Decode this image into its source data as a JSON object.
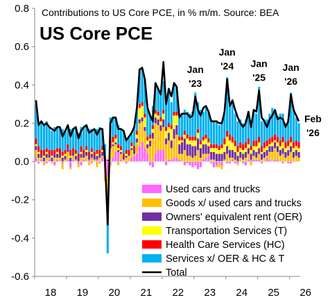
{
  "chart_data": {
    "type": "bar",
    "subtitle": "Contributions to US Core PCE, in % m/m. Source: BEA",
    "title": "US Core PCE",
    "ylim": [
      -0.6,
      0.8
    ],
    "yticks": [
      "0.8",
      "0.6",
      "0.4",
      "0.2",
      "0.0",
      "-0.2",
      "-0.4",
      "-0.6"
    ],
    "ytick_values": [
      0.8,
      0.6,
      0.4,
      0.2,
      0.0,
      -0.2,
      -0.4,
      -0.6
    ],
    "xticks": [
      "18",
      "19",
      "20",
      "21",
      "22",
      "23",
      "24",
      "25",
      "26"
    ],
    "x_start": "2018-01",
    "x_end": "2026-02",
    "grid": false,
    "legend_position": "bottom-right",
    "annotations": [
      {
        "line1": "Jan",
        "line2": "'23",
        "month": "2023-01"
      },
      {
        "line1": "Jan",
        "line2": "'24",
        "month": "2024-01"
      },
      {
        "line1": "Jan",
        "line2": "'25",
        "month": "2025-01"
      },
      {
        "line1": "Jan",
        "line2": "'26",
        "month": "2026-01"
      },
      {
        "line1": "Feb",
        "line2": "'26",
        "month": "2026-02"
      }
    ],
    "series": [
      {
        "name": "Used cars and trucks",
        "color": "#ff66ff",
        "values": [
          0.02,
          -0.01,
          0.01,
          0,
          -0.01,
          0.01,
          0,
          -0.02,
          0.01,
          0,
          -0.01,
          0,
          0.01,
          -0.03,
          0.01,
          0,
          -0.01,
          -0.02,
          0.01,
          0,
          0.01,
          -0.01,
          0,
          0.01,
          -0.01,
          0.02,
          -0.03,
          -0.08,
          -0.02,
          0.02,
          0.05,
          0.05,
          0.01,
          0,
          -0.01,
          0,
          0.02,
          0.03,
          0.04,
          0.08,
          0.1,
          0.07,
          0.04,
          -0.02,
          -0.03,
          0.04,
          0.06,
          0.06,
          0.06,
          -0.02,
          0.01,
          0.01,
          0.02,
          0.02,
          0.01,
          0,
          -0.02,
          -0.01,
          -0.02,
          -0.03,
          -0.02,
          -0.04,
          -0.03,
          0.01,
          0.02,
          0.03,
          -0.01,
          -0.03,
          -0.02,
          -0.01,
          -0.02,
          0,
          -0.01,
          -0.01,
          0.01,
          -0.01,
          -0.01,
          0,
          -0.01,
          -0.02,
          0.01,
          0.01,
          0.01,
          0.01,
          0.01,
          -0.01,
          0,
          0.02,
          0.01,
          0,
          0.01,
          0.01,
          0,
          -0.01,
          0,
          -0.01,
          -0.01,
          0
        ]
      },
      {
        "name": "Goods x/ used cars and trucks",
        "color": "#ffc000",
        "values": [
          0.04,
          0.02,
          0.01,
          -0.02,
          0.02,
          0.01,
          -0.01,
          0.02,
          0.01,
          0.02,
          -0.03,
          0.01,
          0.04,
          -0.01,
          0.02,
          0.01,
          -0.02,
          0.02,
          0.01,
          0.03,
          -0.02,
          0.02,
          0.01,
          -0.03,
          0.02,
          0.01,
          -0.07,
          -0.15,
          0.07,
          0.06,
          0.04,
          -0.02,
          0.03,
          0.01,
          0.02,
          0.03,
          0.04,
          0.01,
          0.06,
          0.12,
          0.11,
          0.09,
          0.03,
          0.08,
          0.12,
          0.16,
          0.13,
          0.1,
          0.12,
          0.09,
          0.1,
          0.06,
          0.1,
          0.12,
          0.03,
          0.04,
          0.06,
          0.03,
          0.03,
          0.02,
          0.03,
          0.06,
          0.02,
          0.03,
          0.02,
          0.01,
          0.01,
          0.01,
          -0.01,
          -0.02,
          -0.02,
          0.01,
          0.04,
          0.02,
          0.01,
          0.01,
          -0.01,
          0.02,
          0.01,
          0.02,
          0.03,
          -0.02,
          0.02,
          0.01,
          0.03,
          0.01,
          0.02,
          0.01,
          0.04,
          0.05,
          0.06,
          0.04,
          0.03,
          0.04,
          0.02,
          0.03,
          0.05,
          0.02,
          0.03,
          0.02
        ]
      },
      {
        "name": "Owners' equivalent rent (OER)",
        "color": "#7030a0",
        "values": [
          0.02,
          0.02,
          0.02,
          0.02,
          0.02,
          0.02,
          0.02,
          0.02,
          0.02,
          0.02,
          0.02,
          0.02,
          0.02,
          0.02,
          0.02,
          0.02,
          0.02,
          0.02,
          0.02,
          0.02,
          0.02,
          0.02,
          0.02,
          0.02,
          0.02,
          0.02,
          0.02,
          0.01,
          0.01,
          0.01,
          0.01,
          0.01,
          0.01,
          0.01,
          0.01,
          0.01,
          0.01,
          0.02,
          0.02,
          0.02,
          0.02,
          0.02,
          0.02,
          0.03,
          0.03,
          0.03,
          0.03,
          0.03,
          0.04,
          0.03,
          0.04,
          0.04,
          0.05,
          0.05,
          0.05,
          0.06,
          0.06,
          0.06,
          0.06,
          0.06,
          0.05,
          0.06,
          0.05,
          0.05,
          0.05,
          0.04,
          0.04,
          0.04,
          0.04,
          0.04,
          0.04,
          0.04,
          0.04,
          0.04,
          0.04,
          0.04,
          0.03,
          0.03,
          0.03,
          0.03,
          0.03,
          0.03,
          0.03,
          0.03,
          0.03,
          0.03,
          0.03,
          0.03,
          0.03,
          0.03,
          0.03,
          0.03,
          0.03,
          0.03,
          0.03,
          0.03,
          0.03,
          0.03,
          0.03,
          0.03
        ]
      },
      {
        "name": "Transportation Services (T)",
        "color": "#ffff00",
        "values": [
          0.01,
          0.01,
          0,
          0.01,
          0.01,
          0,
          0.01,
          0,
          0.01,
          0,
          0.01,
          0.01,
          0,
          0.01,
          0,
          0.01,
          0,
          0.01,
          0,
          0.01,
          0,
          0.01,
          0,
          0.01,
          0,
          0.01,
          0,
          -0.05,
          -0.01,
          0.01,
          0.02,
          0.01,
          0.01,
          0,
          0.01,
          0,
          0.01,
          0,
          0.02,
          0.06,
          0.06,
          0.05,
          0.02,
          0.01,
          0.02,
          0.02,
          0.02,
          0.02,
          0.03,
          0.04,
          0.03,
          0.06,
          0.07,
          0.05,
          0.02,
          0.01,
          0.02,
          0.03,
          0.02,
          0.03,
          0.03,
          0.03,
          0.02,
          0.02,
          0.03,
          0.02,
          0.02,
          0.02,
          0.03,
          0.02,
          0.03,
          0.04,
          0.05,
          0.05,
          0.04,
          0.03,
          0.02,
          0.02,
          0.02,
          0.02,
          0.02,
          0.02,
          0.02,
          0.03,
          0.03,
          0.01,
          0.02,
          0.02,
          0.01,
          0.02,
          0.01,
          0.02,
          0.02,
          0.03,
          0.02,
          0.02,
          0.02,
          0.02,
          0.02,
          0.02
        ]
      },
      {
        "name": "Health Care Services (HC)",
        "color": "#ff0000",
        "values": [
          0.03,
          0.03,
          0.02,
          0.03,
          0.02,
          0.02,
          0.03,
          0.02,
          0.02,
          0.03,
          0.02,
          0.02,
          0.02,
          0.03,
          0.02,
          0.02,
          0.02,
          0.03,
          0.02,
          0.02,
          0.02,
          0.02,
          0.02,
          0.02,
          0.02,
          0.02,
          0.01,
          -0.04,
          0.03,
          0.03,
          0.02,
          0.02,
          0.02,
          0.02,
          0.02,
          0.02,
          0.02,
          0.02,
          0.02,
          0.02,
          0.02,
          0.02,
          0.02,
          0.02,
          0.02,
          0.02,
          0.02,
          0.02,
          0.02,
          0.02,
          0.02,
          0.02,
          0.02,
          0.02,
          0.02,
          0.02,
          0.02,
          0.02,
          0.02,
          0.02,
          0.02,
          0.02,
          0.02,
          0.02,
          0.02,
          0.02,
          0.02,
          0.02,
          0.02,
          0.02,
          0.02,
          0.03,
          0.03,
          0.03,
          0.03,
          0.03,
          0.03,
          0.03,
          0.03,
          0.03,
          0.03,
          0.02,
          0.03,
          0.03,
          0.03,
          0.03,
          0.03,
          0.03,
          0.03,
          0.03,
          0.03,
          0.03,
          0.03,
          0.03,
          0.03,
          0.03,
          0.03,
          0.03,
          0.03,
          0.03
        ]
      },
      {
        "name": "Services x/ OER & HC & T",
        "color": "#00b0f0",
        "values": [
          0.18,
          0.12,
          0.15,
          0.13,
          0.14,
          0.12,
          0.1,
          0.12,
          0.11,
          0.11,
          0.12,
          0.1,
          0.1,
          0.11,
          0.1,
          0.12,
          0.11,
          0.1,
          0.12,
          0.11,
          0.12,
          0.1,
          0.11,
          0.11,
          0.12,
          0.09,
          0.06,
          -0.16,
          0.12,
          0.1,
          0.09,
          0.1,
          0.09,
          0.12,
          0.06,
          0.07,
          0.05,
          0.1,
          0.12,
          0.18,
          0.18,
          0.18,
          0.15,
          0.1,
          0.1,
          0.14,
          0.12,
          0.12,
          0.15,
          0.14,
          0.18,
          0.12,
          0.15,
          0.13,
          0.1,
          0.12,
          0.11,
          0.12,
          0.12,
          0.13,
          0.23,
          0.14,
          0.16,
          0.13,
          0.14,
          0.14,
          0.13,
          0.12,
          0.12,
          0.11,
          0.12,
          0.14,
          0.28,
          0.16,
          0.18,
          0.14,
          0.13,
          0.12,
          0.11,
          0.12,
          0.14,
          0.12,
          0.15,
          0.14,
          0.26,
          0.13,
          0.12,
          0.11,
          0.13,
          0.15,
          0.12,
          0.11,
          0.14,
          0.12,
          0.1,
          0.11,
          0.23,
          0.18,
          0.12,
          0.1
        ]
      }
    ],
    "total": {
      "name": "Total",
      "color": "#000000",
      "values": [
        0.32,
        0.19,
        0.21,
        0.19,
        0.2,
        0.18,
        0.17,
        0.16,
        0.18,
        0.18,
        0.13,
        0.16,
        0.19,
        0.13,
        0.17,
        0.18,
        0.12,
        0.16,
        0.18,
        0.19,
        0.15,
        0.16,
        0.17,
        0.14,
        0.17,
        0.17,
        0.0,
        -0.33,
        0.2,
        0.23,
        0.23,
        0.17,
        0.17,
        0.16,
        0.11,
        0.13,
        0.15,
        0.18,
        0.28,
        0.48,
        0.49,
        0.43,
        0.28,
        0.24,
        0.21,
        0.41,
        0.38,
        0.35,
        0.52,
        0.3,
        0.38,
        0.34,
        0.41,
        0.39,
        0.23,
        0.25,
        0.25,
        0.25,
        0.23,
        0.24,
        0.34,
        0.27,
        0.24,
        0.28,
        0.29,
        0.26,
        0.21,
        0.21,
        0.21,
        0.2,
        0.2,
        0.26,
        0.43,
        0.29,
        0.32,
        0.27,
        0.23,
        0.2,
        0.18,
        0.2,
        0.26,
        0.18,
        0.27,
        0.26,
        0.37,
        0.23,
        0.21,
        0.18,
        0.22,
        0.24,
        0.27,
        0.22,
        0.23,
        0.22,
        0.18,
        0.21,
        0.35,
        0.27,
        0.24,
        0.21
      ]
    }
  },
  "legend": [
    {
      "label": "Used cars and trucks",
      "color": "#ff66ff",
      "kind": "box"
    },
    {
      "label": "Goods x/ used cars and trucks",
      "color": "#ffc000",
      "kind": "box"
    },
    {
      "label": "Owners' equivalent rent (OER)",
      "color": "#7030a0",
      "kind": "box"
    },
    {
      "label": "Transportation Services (T)",
      "color": "#ffff00",
      "kind": "box"
    },
    {
      "label": "Health Care Services (HC)",
      "color": "#ff0000",
      "kind": "box"
    },
    {
      "label": "Services x/ OER & HC & T",
      "color": "#00b0f0",
      "kind": "box"
    },
    {
      "label": "Total",
      "color": "#000000",
      "kind": "line"
    }
  ]
}
